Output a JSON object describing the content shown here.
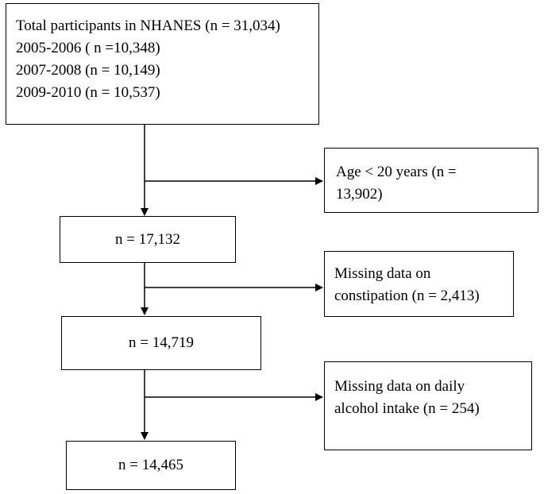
{
  "flowchart": {
    "total": {
      "lines": [
        "Total participants in NHANES (n = 31,034)",
        "2005-2006  ( n =10,348)",
        "2007-2008 (n = 10,149)",
        "2009-2010 (n = 10,537)"
      ]
    },
    "exclusion_age": {
      "lines": [
        "Age < 20 years (n =",
        "13,902)"
      ]
    },
    "step1": {
      "label": "n = 17,132"
    },
    "exclusion_constipation": {
      "lines": [
        "Missing data on",
        "constipation (n = 2,413)"
      ]
    },
    "step2": {
      "label": "n = 14,719"
    },
    "exclusion_alcohol": {
      "lines": [
        "Missing data on daily",
        "alcohol intake (n = 254)"
      ]
    },
    "final": {
      "label": "n = 14,465"
    }
  }
}
